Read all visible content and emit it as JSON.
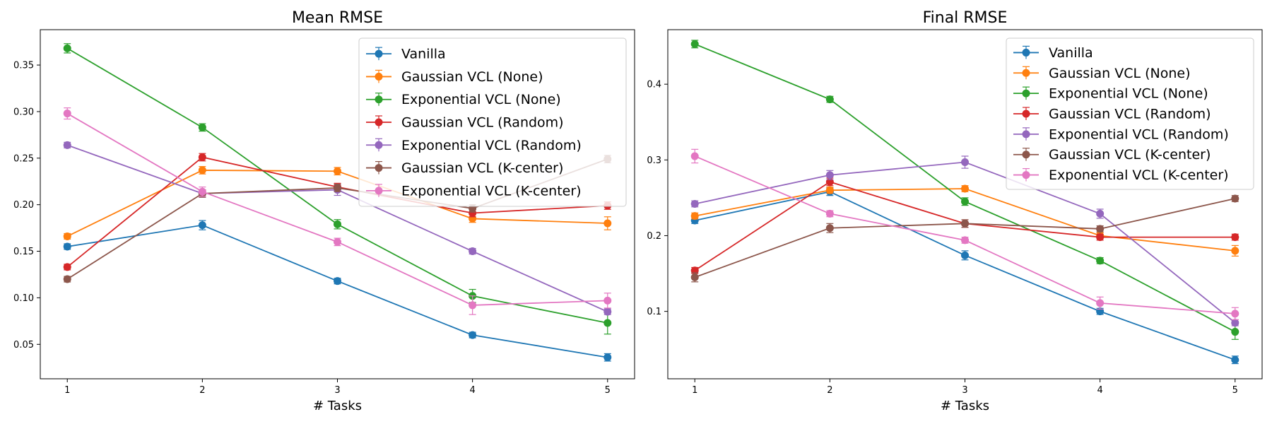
{
  "chart_data": [
    {
      "type": "line",
      "title": "Mean RMSE",
      "xlabel": "# Tasks",
      "ylabel": "",
      "x": [
        1,
        2,
        3,
        4,
        5
      ],
      "xlim": [
        0.8,
        5.2
      ],
      "ylim": [
        0.013,
        0.388
      ],
      "yticks": [
        0.05,
        0.1,
        0.15,
        0.2,
        0.25,
        0.3,
        0.35
      ],
      "ytick_labels": [
        "0.05",
        "0.10",
        "0.15",
        "0.20",
        "0.25",
        "0.30",
        "0.35"
      ],
      "grid": false,
      "legend_position": "top-right",
      "series": [
        {
          "name": "Vanilla",
          "color": "#1f77b4",
          "values": [
            0.155,
            0.178,
            0.118,
            0.06,
            0.036
          ],
          "errors": [
            0.003,
            0.005,
            0.003,
            0.003,
            0.004
          ]
        },
        {
          "name": "Gaussian VCL (None)",
          "color": "#ff7f0e",
          "values": [
            0.166,
            0.237,
            0.236,
            0.185,
            0.18
          ],
          "errors": [
            0.003,
            0.004,
            0.004,
            0.004,
            0.007
          ]
        },
        {
          "name": "Exponential VCL (None)",
          "color": "#2ca02c",
          "values": [
            0.368,
            0.283,
            0.179,
            0.102,
            0.073
          ],
          "errors": [
            0.005,
            0.004,
            0.005,
            0.007,
            0.012
          ]
        },
        {
          "name": "Gaussian VCL (Random)",
          "color": "#d62728",
          "values": [
            0.133,
            0.251,
            0.219,
            0.191,
            0.199
          ],
          "errors": [
            0.003,
            0.004,
            0.004,
            0.004,
            0.004
          ]
        },
        {
          "name": "Exponential VCL (Random)",
          "color": "#9467bd",
          "values": [
            0.264,
            0.212,
            0.216,
            0.15,
            0.085
          ],
          "errors": [
            0.003,
            0.004,
            0.006,
            0.003,
            0.003
          ]
        },
        {
          "name": "Gaussian VCL (K-center)",
          "color": "#8c564b",
          "values": [
            0.12,
            0.212,
            0.218,
            0.196,
            0.249
          ],
          "errors": [
            0.003,
            0.004,
            0.004,
            0.004,
            0.004
          ]
        },
        {
          "name": "Exponential VCL (K-center)",
          "color": "#e377c2",
          "values": [
            0.298,
            0.214,
            0.16,
            0.092,
            0.097
          ],
          "errors": [
            0.006,
            0.005,
            0.004,
            0.01,
            0.008
          ]
        }
      ]
    },
    {
      "type": "line",
      "title": "Final RMSE",
      "xlabel": "# Tasks",
      "ylabel": "",
      "x": [
        1,
        2,
        3,
        4,
        5
      ],
      "xlim": [
        0.8,
        5.2
      ],
      "ylim": [
        0.011,
        0.472
      ],
      "yticks": [
        0.1,
        0.2,
        0.3,
        0.4
      ],
      "ytick_labels": [
        "0.1",
        "0.2",
        "0.3",
        "0.4"
      ],
      "grid": false,
      "legend_position": "top-right",
      "series": [
        {
          "name": "Vanilla",
          "color": "#1f77b4",
          "values": [
            0.22,
            0.258,
            0.174,
            0.1,
            0.036
          ],
          "errors": [
            0.004,
            0.005,
            0.006,
            0.004,
            0.005
          ]
        },
        {
          "name": "Gaussian VCL (None)",
          "color": "#ff7f0e",
          "values": [
            0.226,
            0.26,
            0.262,
            0.2,
            0.18
          ],
          "errors": [
            0.004,
            0.004,
            0.004,
            0.004,
            0.007
          ]
        },
        {
          "name": "Exponential VCL (None)",
          "color": "#2ca02c",
          "values": [
            0.453,
            0.38,
            0.245,
            0.167,
            0.073
          ],
          "errors": [
            0.005,
            0.004,
            0.005,
            0.004,
            0.01
          ]
        },
        {
          "name": "Gaussian VCL (Random)",
          "color": "#d62728",
          "values": [
            0.154,
            0.271,
            0.216,
            0.198,
            0.198
          ],
          "errors": [
            0.004,
            0.005,
            0.005,
            0.004,
            0.004
          ]
        },
        {
          "name": "Exponential VCL (Random)",
          "color": "#9467bd",
          "values": [
            0.242,
            0.28,
            0.297,
            0.229,
            0.085
          ],
          "errors": [
            0.004,
            0.006,
            0.008,
            0.006,
            0.004
          ]
        },
        {
          "name": "Gaussian VCL (K-center)",
          "color": "#8c564b",
          "values": [
            0.145,
            0.21,
            0.216,
            0.209,
            0.249
          ],
          "errors": [
            0.006,
            0.006,
            0.005,
            0.004,
            0.004
          ]
        },
        {
          "name": "Exponential VCL (K-center)",
          "color": "#e377c2",
          "values": [
            0.305,
            0.229,
            0.194,
            0.111,
            0.097
          ],
          "errors": [
            0.009,
            0.004,
            0.004,
            0.008,
            0.008
          ]
        }
      ]
    }
  ]
}
